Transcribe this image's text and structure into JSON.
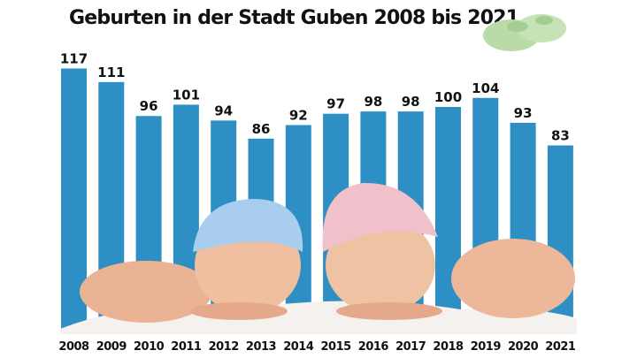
{
  "chart_data": {
    "type": "bar",
    "title": "Geburten in der Stadt Guben 2008 bis 2021",
    "categories": [
      "2008",
      "2009",
      "2010",
      "2011",
      "2012",
      "2013",
      "2014",
      "2015",
      "2016",
      "2017",
      "2018",
      "2019",
      "2020",
      "2021"
    ],
    "values": [
      117,
      111,
      96,
      101,
      94,
      86,
      92,
      97,
      98,
      98,
      100,
      104,
      93,
      83
    ],
    "xlabel": "",
    "ylabel": "",
    "ylim": [
      0,
      120
    ],
    "grid": false,
    "data_labels": true,
    "bar_color": "#2e8fc4"
  },
  "decoration": {
    "illustration": "sleeping-babies-with-knitted-hats",
    "corner_image": "knitted-baby-booties"
  }
}
